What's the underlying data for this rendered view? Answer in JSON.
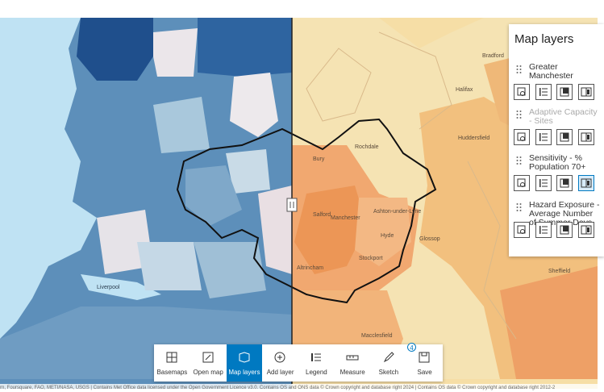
{
  "panel": {
    "title": "Map layers",
    "layers": [
      {
        "name": "Greater Manchester",
        "visible": true
      },
      {
        "name": "Adaptive Capacity - Sites",
        "visible": false
      },
      {
        "name": "Sensitivity - % Population 70+",
        "visible": true
      },
      {
        "name": "Hazard Exposure - Average Number of Summer Days",
        "visible": true
      }
    ]
  },
  "toolbar": {
    "buttons": [
      "Basemaps",
      "Open map",
      "Map layers",
      "Add layer",
      "Legend",
      "Measure",
      "Sketch",
      "Save"
    ],
    "active": 2,
    "badge": "4"
  },
  "places": [
    "Rochdale",
    "Bury",
    "Manchester",
    "Ashton-under-Lyne",
    "Salford",
    "Stockport",
    "Hyde",
    "Glossop",
    "Altrincham",
    "Huddersfield",
    "Halifax",
    "Bradford",
    "Sheffield",
    "Macclesfield",
    "Liverpool"
  ],
  "attribution": "rn, Foursquare, FAO, METI/NASA, USGS | Contains Met Office data licensed under the Open Government Licence v3.0. Contains OS and ONS data © Crown copyright and database right 2024 | Contains OS data © Crown copyright and database right 2012-2"
}
